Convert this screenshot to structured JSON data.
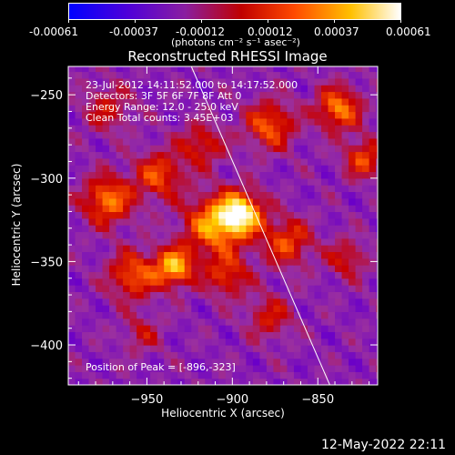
{
  "colorbar": {
    "ticks": [
      "-0.00061",
      "-0.00037",
      "-0.00012",
      "0.00012",
      "0.00037",
      "0.00061"
    ],
    "units": "(photons cm⁻² s⁻¹ asec⁻²)",
    "range": [
      -0.00061,
      0.00061
    ],
    "colors": [
      "#0000ff",
      "#6a00c8",
      "#9a2fa0",
      "#c80000",
      "#ff5a00",
      "#ffd000",
      "#ffffff"
    ]
  },
  "chart_data": {
    "type": "heatmap",
    "title": "Reconstructed RHESSI Image",
    "xlabel": "Heliocentric X (arcsec)",
    "ylabel": "Heliocentric Y (arcsec)",
    "xlim": [
      -996,
      -815
    ],
    "ylim": [
      -424,
      -233
    ],
    "xticks": [
      {
        "value": -950,
        "label": "−950"
      },
      {
        "value": -900,
        "label": "−900"
      },
      {
        "value": -850,
        "label": "−850"
      }
    ],
    "yticks": [
      {
        "value": -250,
        "label": "−250"
      },
      {
        "value": -300,
        "label": "−300"
      },
      {
        "value": -350,
        "label": "−350"
      },
      {
        "value": -400,
        "label": "−400"
      }
    ],
    "peak": {
      "x": -896,
      "y": -323
    },
    "limb": [
      {
        "x": -924,
        "y": -233
      },
      {
        "x": -843,
        "y": -424
      }
    ],
    "sources": [
      {
        "x": -897,
        "y": -323,
        "amp": 1.0,
        "sigma": 9
      },
      {
        "x": -913,
        "y": -330,
        "amp": 0.75,
        "sigma": 12
      },
      {
        "x": -936,
        "y": -355,
        "amp": 0.85,
        "sigma": 8
      },
      {
        "x": -960,
        "y": -360,
        "amp": 0.6,
        "sigma": 10
      },
      {
        "x": -975,
        "y": -315,
        "amp": 0.7,
        "sigma": 10
      },
      {
        "x": -945,
        "y": -300,
        "amp": 0.55,
        "sigma": 10
      },
      {
        "x": -920,
        "y": -282,
        "amp": 0.45,
        "sigma": 9
      },
      {
        "x": -880,
        "y": -270,
        "amp": 0.6,
        "sigma": 10
      },
      {
        "x": -840,
        "y": -260,
        "amp": 0.7,
        "sigma": 9
      },
      {
        "x": -825,
        "y": -290,
        "amp": 0.55,
        "sigma": 8
      },
      {
        "x": -870,
        "y": -340,
        "amp": 0.55,
        "sigma": 10
      },
      {
        "x": -880,
        "y": -385,
        "amp": 0.4,
        "sigma": 9
      },
      {
        "x": -905,
        "y": -360,
        "amp": 0.5,
        "sigma": 9
      },
      {
        "x": -975,
        "y": -260,
        "amp": 0.35,
        "sigma": 10
      },
      {
        "x": -835,
        "y": -350,
        "amp": 0.4,
        "sigma": 8
      },
      {
        "x": -955,
        "y": -395,
        "amp": 0.3,
        "sigma": 8
      }
    ]
  },
  "overlay": {
    "time_range": "23-Jul-2012 14:11:52.000 to 14:17:52.000",
    "detectors": "Detectors: 3F 5F 6F 7F 8F  Att 0",
    "energy": "Energy Range: 12.0 - 25.0 keV",
    "clean": "Clean     Total counts: 3.45E+03",
    "peak_label": "Position of Peak = [-896,-323]"
  },
  "timestamp": "12-May-2022 22:11"
}
